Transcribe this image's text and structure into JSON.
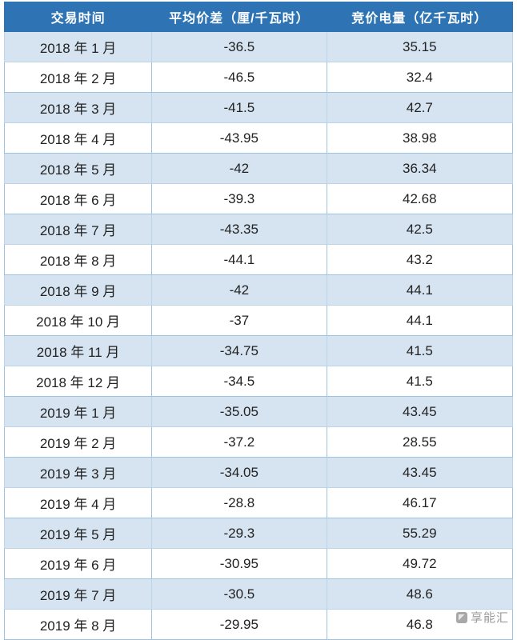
{
  "chart_data": {
    "type": "table",
    "title": "",
    "columns": [
      "交易时间",
      "平均价差（厘/千瓦时）",
      "竞价电量（亿千瓦时）"
    ],
    "column_keys": [
      "trade_period",
      "avg_price_diff_li_per_kwh",
      "bid_volume_100m_kwh"
    ],
    "rows": [
      [
        "2018 年 1 月",
        -36.5,
        35.15
      ],
      [
        "2018 年 2 月",
        -46.5,
        32.4
      ],
      [
        "2018 年 3 月",
        -41.5,
        42.7
      ],
      [
        "2018 年 4 月",
        -43.95,
        38.98
      ],
      [
        "2018 年 5 月",
        -42,
        36.34
      ],
      [
        "2018 年 6 月",
        -39.3,
        42.68
      ],
      [
        "2018 年 7 月",
        -43.35,
        42.5
      ],
      [
        "2018 年 8 月",
        -44.1,
        43.2
      ],
      [
        "2018 年 9 月",
        -42,
        44.1
      ],
      [
        "2018 年 10 月",
        -37,
        44.1
      ],
      [
        "2018 年 11 月",
        -34.75,
        41.5
      ],
      [
        "2018 年 12 月",
        -34.5,
        41.5
      ],
      [
        "2019 年 1 月",
        -35.05,
        43.45
      ],
      [
        "2019 年 2 月",
        -37.2,
        28.55
      ],
      [
        "2019 年 3 月",
        -34.05,
        43.45
      ],
      [
        "2019 年 4 月",
        -28.8,
        46.17
      ],
      [
        "2019 年 5 月",
        -29.3,
        55.29
      ],
      [
        "2019 年 6 月",
        -30.95,
        49.72
      ],
      [
        "2019 年 7 月",
        -30.5,
        48.6
      ],
      [
        "2019 年 8 月",
        -29.95,
        46.8
      ]
    ],
    "layout": {
      "header_bg": "#2e74b5",
      "alt_row_bg": "#d6e3f1",
      "border_color": "#9cc3e3",
      "striped": true
    }
  },
  "watermark": {
    "label": "享能汇",
    "icon": "xiangnenghui-logo"
  }
}
